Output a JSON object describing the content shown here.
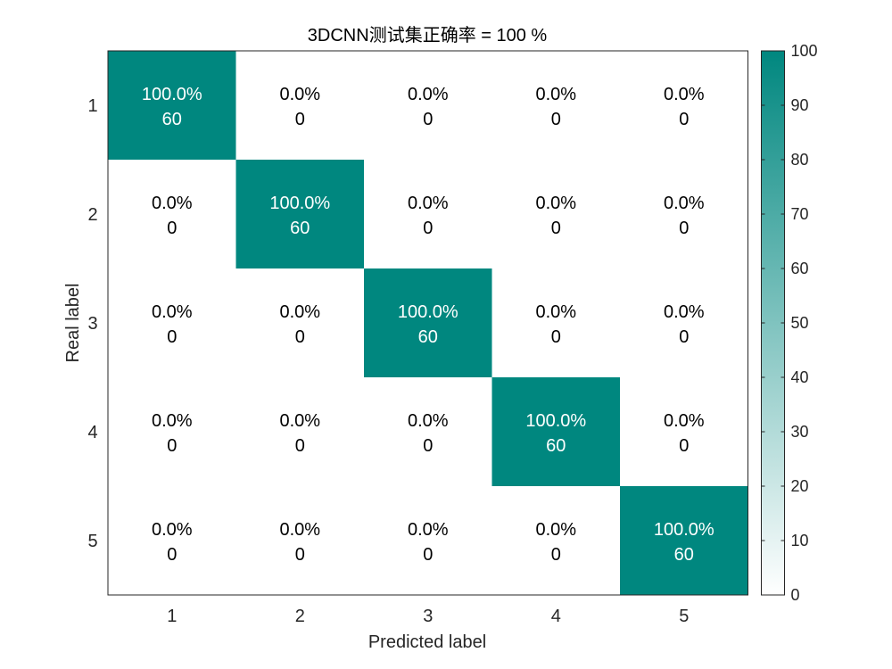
{
  "chart_data": {
    "type": "heatmap",
    "title": "3DCNN测试集正确率 = 100 %",
    "xlabel": "Predicted label",
    "ylabel": "Real label",
    "x_tick_labels": [
      "1",
      "2",
      "3",
      "4",
      "5"
    ],
    "y_tick_labels": [
      "1",
      "2",
      "3",
      "4",
      "5"
    ],
    "cells": [
      [
        {
          "percent": "100.0%",
          "count": "60"
        },
        {
          "percent": "0.0%",
          "count": "0"
        },
        {
          "percent": "0.0%",
          "count": "0"
        },
        {
          "percent": "0.0%",
          "count": "0"
        },
        {
          "percent": "0.0%",
          "count": "0"
        }
      ],
      [
        {
          "percent": "0.0%",
          "count": "0"
        },
        {
          "percent": "100.0%",
          "count": "60"
        },
        {
          "percent": "0.0%",
          "count": "0"
        },
        {
          "percent": "0.0%",
          "count": "0"
        },
        {
          "percent": "0.0%",
          "count": "0"
        }
      ],
      [
        {
          "percent": "0.0%",
          "count": "0"
        },
        {
          "percent": "0.0%",
          "count": "0"
        },
        {
          "percent": "100.0%",
          "count": "60"
        },
        {
          "percent": "0.0%",
          "count": "0"
        },
        {
          "percent": "0.0%",
          "count": "0"
        }
      ],
      [
        {
          "percent": "0.0%",
          "count": "0"
        },
        {
          "percent": "0.0%",
          "count": "0"
        },
        {
          "percent": "0.0%",
          "count": "0"
        },
        {
          "percent": "100.0%",
          "count": "60"
        },
        {
          "percent": "0.0%",
          "count": "0"
        }
      ],
      [
        {
          "percent": "0.0%",
          "count": "0"
        },
        {
          "percent": "0.0%",
          "count": "0"
        },
        {
          "percent": "0.0%",
          "count": "0"
        },
        {
          "percent": "0.0%",
          "count": "0"
        },
        {
          "percent": "100.0%",
          "count": "60"
        }
      ]
    ],
    "values": [
      [
        100,
        0,
        0,
        0,
        0
      ],
      [
        0,
        100,
        0,
        0,
        0
      ],
      [
        0,
        0,
        100,
        0,
        0
      ],
      [
        0,
        0,
        0,
        100,
        0
      ],
      [
        0,
        0,
        0,
        0,
        100
      ]
    ],
    "colorbar": {
      "range": [
        0,
        100
      ],
      "ticks": [
        "0",
        "10",
        "20",
        "30",
        "40",
        "50",
        "60",
        "70",
        "80",
        "90",
        "100"
      ],
      "low_color": "#ffffff",
      "high_color": "#00877f"
    },
    "grid": false
  }
}
